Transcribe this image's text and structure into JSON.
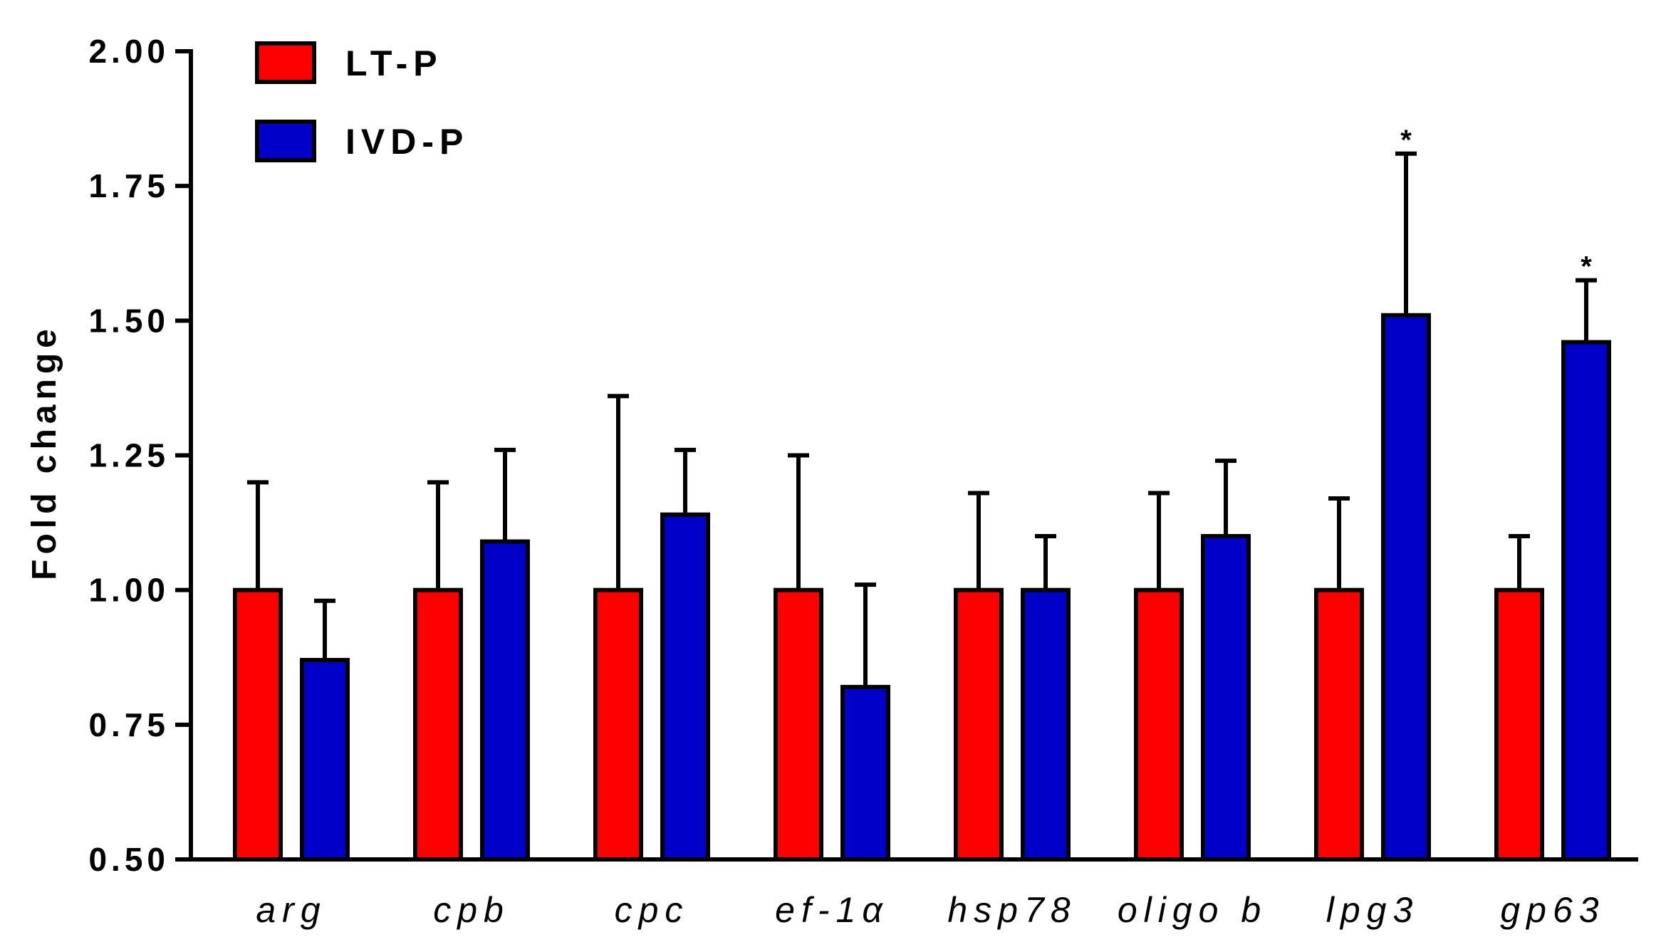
{
  "chart_data": {
    "type": "bar",
    "title": "",
    "xlabel": "",
    "ylabel": "Fold change",
    "ylim": [
      0.5,
      2.0
    ],
    "yticks": [
      "0.50",
      "0.75",
      "1.00",
      "1.25",
      "1.50",
      "1.75",
      "2.00"
    ],
    "categories": [
      "arg",
      "cpb",
      "cpc",
      "ef-1α",
      "hsp78",
      "oligo b",
      "lpg3",
      "gp63"
    ],
    "series": [
      {
        "name": "LT-P",
        "color": "#ff0000",
        "values": [
          1.0,
          1.0,
          1.0,
          1.0,
          1.0,
          1.0,
          1.0,
          1.0
        ],
        "errors": [
          0.2,
          0.2,
          0.36,
          0.25,
          0.18,
          0.18,
          0.17,
          0.1
        ]
      },
      {
        "name": "IVD-P",
        "color": "#0000c8",
        "values": [
          0.87,
          1.09,
          1.14,
          0.82,
          1.0,
          1.1,
          1.51,
          1.46
        ],
        "errors": [
          0.11,
          0.17,
          0.12,
          0.19,
          0.1,
          0.14,
          0.3,
          0.115
        ]
      }
    ],
    "annotations": [
      {
        "category": "lpg3",
        "series": "IVD-P",
        "text": "*"
      },
      {
        "category": "gp63",
        "series": "IVD-P",
        "text": "*"
      }
    ],
    "legend": {
      "position": "top-left",
      "labels": [
        "LT-P",
        "IVD-P"
      ]
    },
    "grid": false
  }
}
